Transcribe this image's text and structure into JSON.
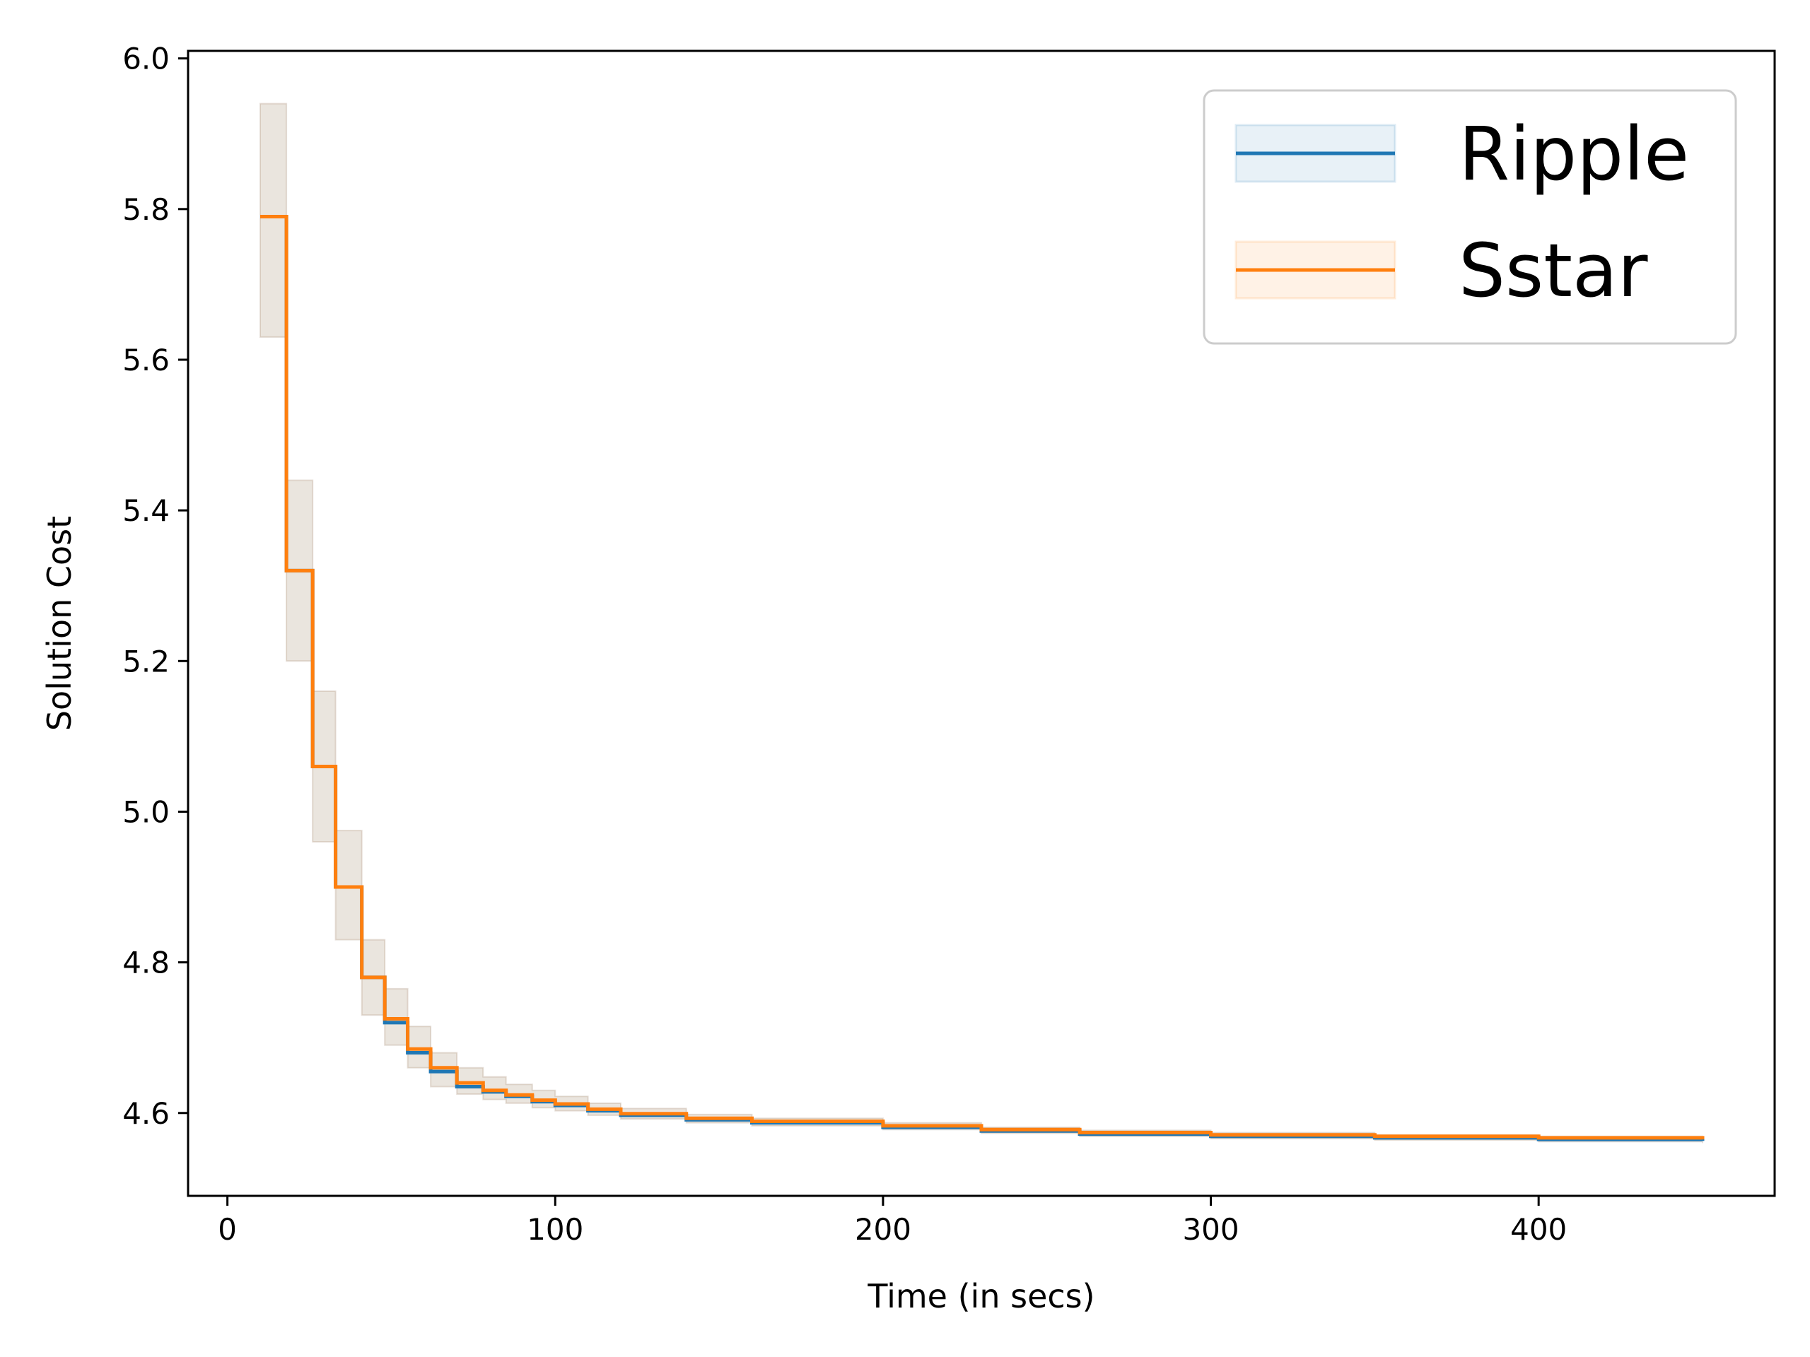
{
  "chart_data": {
    "type": "line",
    "title": "",
    "xlabel": "Time (in secs)",
    "ylabel": "Solution Cost",
    "xlim": [
      -12,
      472
    ],
    "ylim": [
      4.49,
      6.01
    ],
    "xticks": [
      0,
      100,
      200,
      300,
      400
    ],
    "yticks": [
      4.6,
      4.8,
      5.0,
      5.2,
      5.4,
      5.6,
      5.8,
      6.0
    ],
    "xtick_labels": [
      "0",
      "100",
      "200",
      "300",
      "400"
    ],
    "ytick_labels": [
      "4.6",
      "4.8",
      "5.0",
      "5.2",
      "5.4",
      "5.6",
      "5.8",
      "6.0"
    ],
    "grid": false,
    "legend": {
      "placement": "top-right",
      "entries": [
        "Ripple",
        "Sstar"
      ]
    },
    "series": [
      {
        "name": "Ripple",
        "color": "#1f77b4",
        "band_color": "#1f77b4",
        "x": [
          10,
          18,
          26,
          33,
          41,
          48,
          55,
          62,
          70,
          78,
          85,
          93,
          100,
          110,
          120,
          140,
          160,
          200,
          230,
          260,
          300,
          350,
          400,
          450
        ],
        "y": [
          5.79,
          5.32,
          5.06,
          4.9,
          4.78,
          4.72,
          4.68,
          4.655,
          4.635,
          4.628,
          4.622,
          4.615,
          4.61,
          4.603,
          4.597,
          4.591,
          4.587,
          4.581,
          4.576,
          4.572,
          4.569,
          4.567,
          4.565,
          4.563
        ],
        "lower": [
          5.63,
          5.2,
          4.96,
          4.83,
          4.73,
          4.69,
          4.66,
          4.635,
          4.625,
          4.618,
          4.613,
          4.607,
          4.603,
          4.597,
          4.592,
          4.587,
          4.583,
          4.578,
          4.573,
          4.569,
          4.566,
          4.564,
          4.562,
          4.56
        ],
        "upper": [
          5.94,
          5.44,
          5.16,
          4.975,
          4.83,
          4.765,
          4.715,
          4.68,
          4.66,
          4.648,
          4.638,
          4.63,
          4.622,
          4.613,
          4.606,
          4.598,
          4.593,
          4.587,
          4.581,
          4.577,
          4.574,
          4.571,
          4.569,
          4.567
        ]
      },
      {
        "name": "Sstar",
        "color": "#ff7f0e",
        "band_color": "#ff7f0e",
        "x": [
          10,
          18,
          26,
          33,
          41,
          48,
          55,
          62,
          70,
          78,
          85,
          93,
          100,
          110,
          120,
          140,
          160,
          200,
          230,
          260,
          300,
          350,
          400,
          450
        ],
        "y": [
          5.79,
          5.32,
          5.06,
          4.9,
          4.78,
          4.725,
          4.685,
          4.66,
          4.64,
          4.63,
          4.624,
          4.617,
          4.612,
          4.605,
          4.599,
          4.593,
          4.589,
          4.583,
          4.578,
          4.574,
          4.571,
          4.569,
          4.567,
          4.565
        ],
        "lower": [
          5.63,
          5.2,
          4.96,
          4.83,
          4.73,
          4.69,
          4.66,
          4.635,
          4.625,
          4.618,
          4.613,
          4.607,
          4.603,
          4.597,
          4.592,
          4.587,
          4.583,
          4.578,
          4.573,
          4.569,
          4.566,
          4.564,
          4.562,
          4.56
        ],
        "upper": [
          5.94,
          5.44,
          5.16,
          4.975,
          4.83,
          4.765,
          4.715,
          4.68,
          4.66,
          4.648,
          4.638,
          4.63,
          4.622,
          4.613,
          4.606,
          4.598,
          4.593,
          4.587,
          4.581,
          4.577,
          4.574,
          4.571,
          4.569,
          4.567
        ]
      }
    ]
  }
}
